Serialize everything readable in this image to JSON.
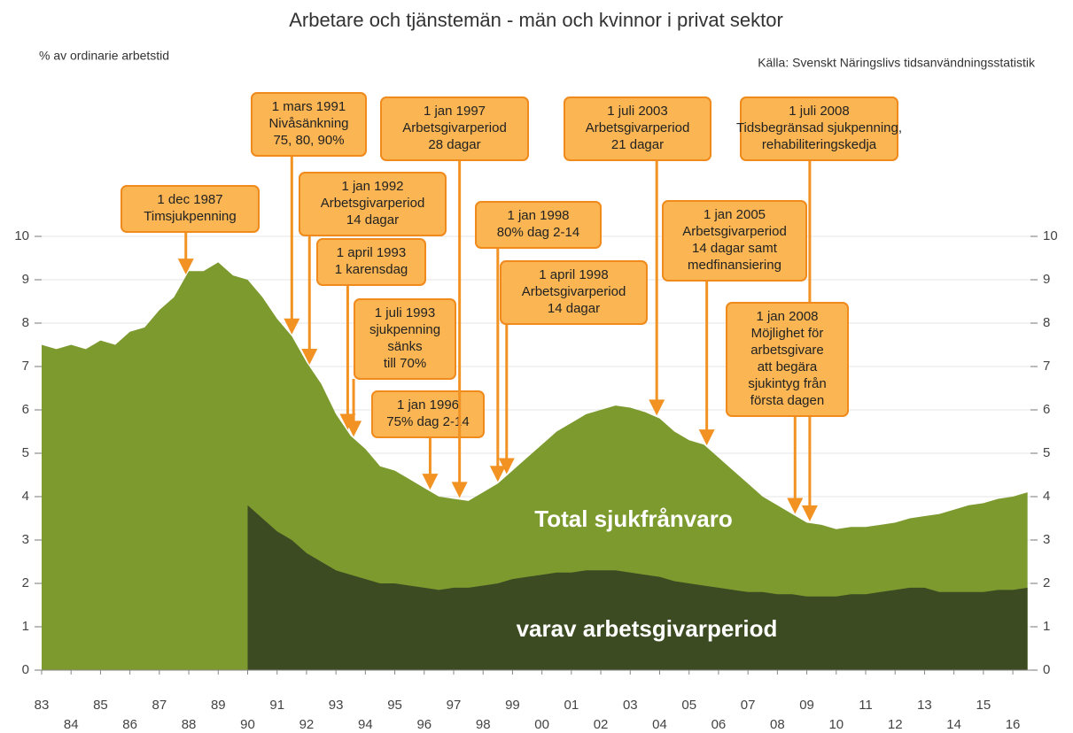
{
  "chart_data": {
    "type": "area",
    "title": "Arbetare och tjänstemän - män och kvinnor i privat sektor",
    "y_label": "% av ordinarie arbetstid",
    "source": "Källa: Svenskt Näringslivs tidsanvändningsstatistik",
    "x": [
      1983,
      1983.5,
      1984,
      1984.5,
      1985,
      1985.5,
      1986,
      1986.5,
      1987,
      1987.5,
      1988,
      1988.5,
      1989,
      1989.5,
      1990,
      1990.5,
      1991,
      1991.5,
      1992,
      1992.5,
      1993,
      1993.5,
      1994,
      1994.5,
      1995,
      1995.5,
      1996,
      1996.5,
      1997,
      1997.5,
      1998,
      1998.5,
      1999,
      1999.5,
      2000,
      2000.5,
      2001,
      2001.5,
      2002,
      2002.5,
      2003,
      2003.5,
      2004,
      2004.5,
      2005,
      2005.5,
      2006,
      2006.5,
      2007,
      2007.5,
      2008,
      2008.5,
      2009,
      2009.5,
      2010,
      2010.5,
      2011,
      2011.5,
      2012,
      2012.5,
      2013,
      2013.5,
      2014,
      2014.5,
      2015,
      2015.5,
      2016,
      2016.5
    ],
    "series": [
      {
        "name": "Total sjukfrånvaro",
        "color": "#7d9a2f",
        "values": [
          7.5,
          7.4,
          7.5,
          7.4,
          7.6,
          7.5,
          7.8,
          7.9,
          8.3,
          8.6,
          9.2,
          9.2,
          9.4,
          9.1,
          9.0,
          8.6,
          8.1,
          7.7,
          7.1,
          6.6,
          5.9,
          5.4,
          5.1,
          4.7,
          4.6,
          4.4,
          4.2,
          4.0,
          3.95,
          3.9,
          4.1,
          4.3,
          4.6,
          4.9,
          5.2,
          5.5,
          5.7,
          5.9,
          6.0,
          6.1,
          6.05,
          5.95,
          5.8,
          5.5,
          5.3,
          5.2,
          4.9,
          4.6,
          4.3,
          4.0,
          3.8,
          3.6,
          3.4,
          3.35,
          3.25,
          3.3,
          3.3,
          3.35,
          3.4,
          3.5,
          3.55,
          3.6,
          3.7,
          3.8,
          3.85,
          3.95,
          4.0,
          4.1
        ]
      },
      {
        "name": "varav arbetsgivarperiod",
        "color": "#3c4b22",
        "values": [
          null,
          null,
          null,
          null,
          null,
          null,
          null,
          null,
          null,
          null,
          null,
          null,
          null,
          null,
          3.8,
          3.5,
          3.2,
          3.0,
          2.7,
          2.5,
          2.3,
          2.2,
          2.1,
          2.0,
          2.0,
          1.95,
          1.9,
          1.85,
          1.9,
          1.9,
          1.95,
          2.0,
          2.1,
          2.15,
          2.2,
          2.25,
          2.25,
          2.3,
          2.3,
          2.3,
          2.25,
          2.2,
          2.15,
          2.05,
          2.0,
          1.95,
          1.9,
          1.85,
          1.8,
          1.8,
          1.75,
          1.75,
          1.7,
          1.7,
          1.7,
          1.75,
          1.75,
          1.8,
          1.85,
          1.9,
          1.9,
          1.8,
          1.8,
          1.8,
          1.8,
          1.85,
          1.85,
          1.9
        ]
      }
    ],
    "xlim": [
      1983,
      2016.6
    ],
    "xticks": [
      {
        "value": 1983,
        "label": "83"
      },
      {
        "value": 1984,
        "label": "84"
      },
      {
        "value": 1985,
        "label": "85"
      },
      {
        "value": 1986,
        "label": "86"
      },
      {
        "value": 1987,
        "label": "87"
      },
      {
        "value": 1988,
        "label": "88"
      },
      {
        "value": 1989,
        "label": "89"
      },
      {
        "value": 1990,
        "label": "90"
      },
      {
        "value": 1991,
        "label": "91"
      },
      {
        "value": 1992,
        "label": "92"
      },
      {
        "value": 1993,
        "label": "93"
      },
      {
        "value": 1994,
        "label": "94"
      },
      {
        "value": 1995,
        "label": "95"
      },
      {
        "value": 1996,
        "label": "96"
      },
      {
        "value": 1997,
        "label": "97"
      },
      {
        "value": 1998,
        "label": "98"
      },
      {
        "value": 1999,
        "label": "99"
      },
      {
        "value": 2000,
        "label": "00"
      },
      {
        "value": 2001,
        "label": "01"
      },
      {
        "value": 2002,
        "label": "02"
      },
      {
        "value": 2003,
        "label": "03"
      },
      {
        "value": 2004,
        "label": "04"
      },
      {
        "value": 2005,
        "label": "05"
      },
      {
        "value": 2006,
        "label": "06"
      },
      {
        "value": 2007,
        "label": "07"
      },
      {
        "value": 2008,
        "label": "08"
      },
      {
        "value": 2009,
        "label": "09"
      },
      {
        "value": 2010,
        "label": "10"
      },
      {
        "value": 2011,
        "label": "11"
      },
      {
        "value": 2012,
        "label": "12"
      },
      {
        "value": 2013,
        "label": "13"
      },
      {
        "value": 2014,
        "label": "14"
      },
      {
        "value": 2015,
        "label": "15"
      },
      {
        "value": 2016,
        "label": "16"
      }
    ],
    "ylim": [
      0,
      10
    ],
    "yticks": [
      0,
      1,
      2,
      3,
      4,
      5,
      6,
      7,
      8,
      9,
      10
    ],
    "y2lim": [
      0,
      10
    ],
    "y2ticks": [
      0,
      1,
      2,
      3,
      4,
      5,
      6,
      7,
      8,
      9,
      10
    ],
    "grid": true,
    "annotations": [
      {
        "x": 1987.9,
        "lines": [
          "1 dec 1987",
          "Timsjukpenning"
        ]
      },
      {
        "x": 1991.5,
        "lines": [
          "1 mars 1991",
          "Nivåsänkning",
          "75, 80, 90%"
        ]
      },
      {
        "x": 1992.1,
        "lines": [
          "1 jan 1992",
          "Arbetsgivarperiod",
          "14 dagar"
        ]
      },
      {
        "x": 1993.4,
        "lines": [
          "1 april 1993",
          "1 karensdag"
        ]
      },
      {
        "x": 1993.6,
        "lines": [
          "1 juli 1993",
          "sjukpenning",
          "sänks",
          "till 70%"
        ]
      },
      {
        "x": 1996.2,
        "lines": [
          "1 jan 1996",
          "75% dag 2-14"
        ]
      },
      {
        "x": 1997.2,
        "lines": [
          "1 jan 1997",
          "Arbetsgivarperiod",
          "28 dagar"
        ]
      },
      {
        "x": 1998.5,
        "lines": [
          "1 jan 1998",
          "80% dag 2-14"
        ]
      },
      {
        "x": 1998.8,
        "lines": [
          "1 april 1998",
          "Arbetsgivarperiod",
          "14 dagar"
        ]
      },
      {
        "x": 2003.9,
        "lines": [
          "1 juli 2003",
          "Arbetsgivarperiod",
          "21 dagar"
        ]
      },
      {
        "x": 2005.6,
        "lines": [
          "1 jan 2005",
          "Arbetsgivarperiod",
          "14 dagar samt",
          "medfinansiering"
        ]
      },
      {
        "x": 2009.1,
        "lines": [
          "1 juli 2008",
          "Tidsbegränsad sjukpenning,",
          "rehabiliteringskedja"
        ]
      },
      {
        "x": 2008.6,
        "lines": [
          "1 jan 2008",
          "Möjlighet för",
          "arbetsgivare",
          "att begära",
          "sjukintyg från",
          "första dagen"
        ]
      }
    ]
  }
}
